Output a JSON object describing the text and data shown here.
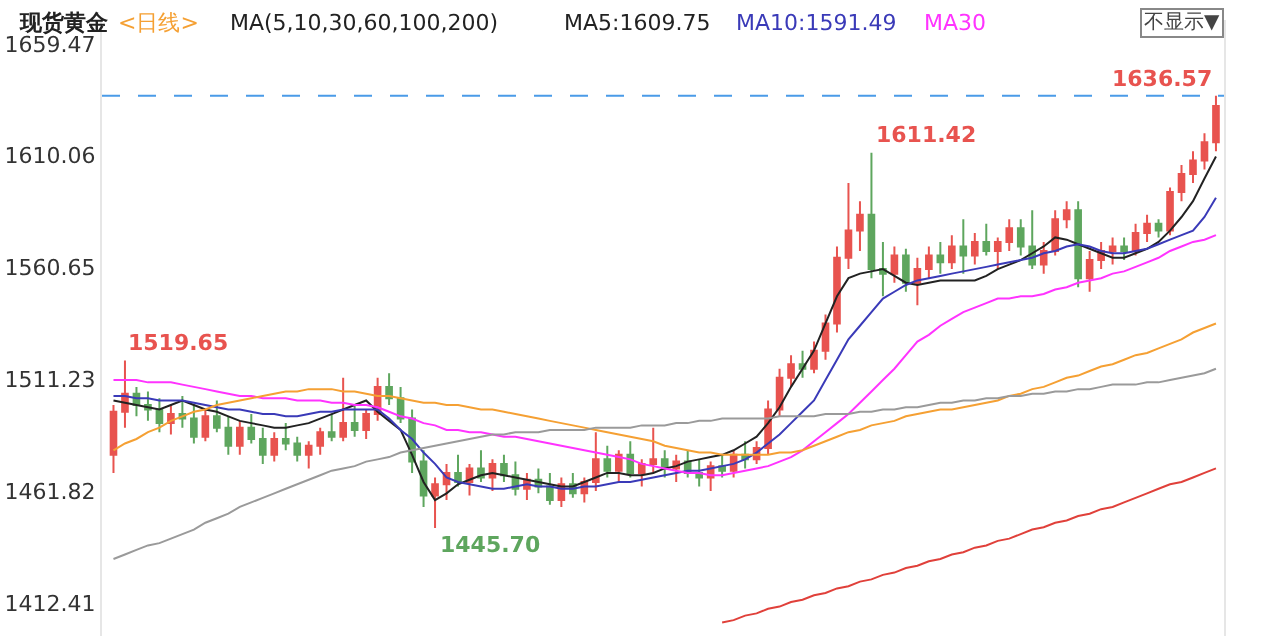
{
  "chart_data": {
    "type": "candlestick",
    "title": "现货黄金",
    "subtitle": "<日线>",
    "annotations": [
      "MA(5,10,30,60,100,200)",
      "不显示▼",
      "1519.65",
      "1445.70",
      "1611.42",
      "1636.57"
    ],
    "categories": [
      null,
      null,
      null,
      null,
      null,
      null,
      null,
      null,
      null,
      null,
      null,
      null,
      null,
      null,
      null,
      null,
      null,
      null,
      null,
      null,
      null,
      null,
      null,
      null,
      null,
      null,
      null,
      null,
      null,
      null,
      null,
      null,
      null,
      null,
      null,
      null,
      null,
      null,
      null,
      null,
      null,
      null,
      null,
      null,
      null,
      null,
      null,
      null,
      null,
      null,
      null,
      null,
      null,
      null,
      null,
      null,
      null,
      null,
      null,
      null,
      null,
      null,
      null,
      null,
      null,
      null,
      null,
      null,
      null,
      null,
      null,
      null,
      null,
      null,
      null,
      null,
      null,
      null,
      null,
      null,
      null,
      null,
      null,
      null,
      null,
      null,
      null,
      null,
      null,
      null,
      null,
      null,
      null,
      null,
      null,
      null,
      null
    ],
    "ohlc": [
      [
        1478,
        1500,
        1470,
        1497
      ],
      [
        1497,
        1519.65,
        1490,
        1505
      ],
      [
        1505,
        1508,
        1495,
        1500
      ],
      [
        1500,
        1506,
        1493,
        1498
      ],
      [
        1498,
        1503,
        1488,
        1492
      ],
      [
        1492,
        1500,
        1487,
        1496
      ],
      [
        1496,
        1504,
        1490,
        1494
      ],
      [
        1494,
        1500,
        1483,
        1486
      ],
      [
        1486,
        1498,
        1484,
        1495
      ],
      [
        1495,
        1502,
        1488,
        1490
      ],
      [
        1490,
        1495,
        1478,
        1482
      ],
      [
        1482,
        1493,
        1478,
        1490
      ],
      [
        1490,
        1496,
        1483,
        1485
      ],
      [
        1485,
        1490,
        1474,
        1478
      ],
      [
        1478,
        1488,
        1475,
        1485
      ],
      [
        1485,
        1492,
        1480,
        1483
      ],
      [
        1483,
        1486,
        1475,
        1478
      ],
      [
        1478,
        1484,
        1472,
        1482
      ],
      [
        1482,
        1490,
        1478,
        1488
      ],
      [
        1488,
        1496,
        1484,
        1486
      ],
      [
        1486,
        1512,
        1484,
        1492
      ],
      [
        1492,
        1500,
        1486,
        1489
      ],
      [
        1489,
        1498,
        1485,
        1496
      ],
      [
        1496,
        1512,
        1493,
        1508
      ],
      [
        1508,
        1514,
        1500,
        1503
      ],
      [
        1503,
        1508,
        1492,
        1494
      ],
      [
        1494,
        1498,
        1470,
        1475
      ],
      [
        1475,
        1480,
        1455,
        1460
      ],
      [
        1460,
        1468,
        1445.7,
        1465
      ],
      [
        1465,
        1474,
        1458,
        1470
      ],
      [
        1470,
        1478,
        1464,
        1466
      ],
      [
        1466,
        1474,
        1460,
        1472
      ],
      [
        1472,
        1480,
        1466,
        1468
      ],
      [
        1468,
        1476,
        1462,
        1474
      ],
      [
        1474,
        1478,
        1466,
        1469
      ],
      [
        1469,
        1475,
        1460,
        1463
      ],
      [
        1463,
        1470,
        1458,
        1467
      ],
      [
        1467,
        1472,
        1461,
        1464
      ],
      [
        1464,
        1470,
        1456,
        1458
      ],
      [
        1458,
        1468,
        1455,
        1465
      ],
      [
        1465,
        1470,
        1459,
        1461
      ],
      [
        1461,
        1468,
        1457,
        1466
      ],
      [
        1466,
        1488,
        1462,
        1476
      ],
      [
        1476,
        1482,
        1468,
        1471
      ],
      [
        1471,
        1480,
        1466,
        1478
      ],
      [
        1478,
        1484,
        1468,
        1470
      ],
      [
        1470,
        1476,
        1464,
        1474
      ],
      [
        1474,
        1490,
        1470,
        1476
      ],
      [
        1476,
        1480,
        1468,
        1472
      ],
      [
        1472,
        1478,
        1466,
        1475
      ],
      [
        1475,
        1480,
        1468,
        1470
      ],
      [
        1470,
        1476,
        1464,
        1468
      ],
      [
        1468,
        1475,
        1462,
        1473
      ],
      [
        1473,
        1478,
        1468,
        1471
      ],
      [
        1471,
        1480,
        1468,
        1478
      ],
      [
        1478,
        1484,
        1472,
        1476
      ],
      [
        1476,
        1484,
        1474,
        1481
      ],
      [
        1481,
        1502,
        1478,
        1498
      ],
      [
        1498,
        1516,
        1495,
        1512
      ],
      [
        1512,
        1522,
        1508,
        1518
      ],
      [
        1518,
        1524,
        1512,
        1516
      ],
      [
        1516,
        1528,
        1514,
        1524
      ],
      [
        1524,
        1540,
        1520,
        1536
      ],
      [
        1536,
        1570,
        1532,
        1565
      ],
      [
        1565,
        1598,
        1560,
        1577
      ],
      [
        1577,
        1590,
        1568,
        1584
      ],
      [
        1584,
        1611.42,
        1556,
        1560
      ],
      [
        1560,
        1572,
        1548,
        1558
      ],
      [
        1558,
        1570,
        1554,
        1566
      ],
      [
        1566,
        1569,
        1550,
        1554
      ],
      [
        1554,
        1565,
        1544,
        1560
      ],
      [
        1560,
        1570,
        1556,
        1566
      ],
      [
        1566,
        1572,
        1558,
        1563
      ],
      [
        1563,
        1575,
        1560,
        1570
      ],
      [
        1570,
        1582,
        1558,
        1566
      ],
      [
        1566,
        1576,
        1562,
        1572
      ],
      [
        1572,
        1580,
        1566,
        1568
      ],
      [
        1568,
        1574,
        1560,
        1572
      ],
      [
        1572,
        1582,
        1568,
        1578
      ],
      [
        1578,
        1582,
        1566,
        1570
      ],
      [
        1570,
        1586,
        1560,
        1562
      ],
      [
        1562,
        1572,
        1558,
        1568
      ],
      [
        1568,
        1586,
        1566,
        1582
      ],
      [
        1582,
        1590,
        1578,
        1586
      ],
      [
        1586,
        1590,
        1552,
        1556
      ],
      [
        1556,
        1568,
        1550,
        1564
      ],
      [
        1564,
        1572,
        1560,
        1568
      ],
      [
        1568,
        1574,
        1562,
        1570
      ],
      [
        1570,
        1574,
        1564,
        1568
      ],
      [
        1568,
        1580,
        1566,
        1576
      ],
      [
        1576,
        1584,
        1572,
        1580
      ],
      [
        1580,
        1582,
        1574,
        1577
      ],
      [
        1577,
        1596,
        1575,
        1594
      ],
      [
        1594,
        1606,
        1590,
        1602
      ],
      [
        1602,
        1612,
        1598,
        1608
      ],
      [
        1608,
        1620,
        1604,
        1616
      ],
      [
        1616,
        1636.57,
        1612,
        1632
      ]
    ],
    "colors": [
      "#e8534f",
      "#e8534f",
      "#5ea65e",
      "#5ea65e",
      "#5ea65e",
      "#e8534f",
      "#5ea65e",
      "#5ea65e",
      "#e8534f",
      "#5ea65e",
      "#5ea65e",
      "#e8534f",
      "#5ea65e",
      "#5ea65e",
      "#e8534f",
      "#5ea65e",
      "#5ea65e",
      "#e8534f",
      "#e8534f",
      "#5ea65e",
      "#e8534f",
      "#5ea65e",
      "#e8534f",
      "#e8534f",
      "#5ea65e",
      "#5ea65e",
      "#5ea65e",
      "#5ea65e",
      "#e8534f",
      "#e8534f",
      "#5ea65e",
      "#e8534f",
      "#5ea65e",
      "#e8534f",
      "#5ea65e",
      "#5ea65e",
      "#e8534f",
      "#5ea65e",
      "#5ea65e",
      "#e8534f",
      "#5ea65e",
      "#e8534f",
      "#e8534f",
      "#5ea65e",
      "#e8534f",
      "#5ea65e",
      "#e8534f",
      "#e8534f",
      "#5ea65e",
      "#e8534f",
      "#5ea65e",
      "#5ea65e",
      "#e8534f",
      "#5ea65e",
      "#e8534f",
      "#5ea65e",
      "#e8534f",
      "#e8534f",
      "#e8534f",
      "#e8534f",
      "#5ea65e",
      "#e8534f",
      "#e8534f",
      "#e8534f",
      "#e8534f",
      "#e8534f",
      "#5ea65e",
      "#5ea65e",
      "#e8534f",
      "#5ea65e",
      "#e8534f",
      "#e8534f",
      "#5ea65e",
      "#e8534f",
      "#5ea65e",
      "#e8534f",
      "#5ea65e",
      "#e8534f",
      "#e8534f",
      "#5ea65e",
      "#5ea65e",
      "#e8534f",
      "#e8534f",
      "#e8534f",
      "#5ea65e",
      "#e8534f",
      "#e8534f",
      "#e8534f",
      "#5ea65e",
      "#e8534f",
      "#e8534f",
      "#5ea65e",
      "#e8534f",
      "#e8534f",
      "#e8534f",
      "#e8534f",
      "#e8534f"
    ],
    "series": [
      {
        "name": "MA5:1609.75",
        "type": "line",
        "color": "#222222",
        "values": [
          1502,
          1501,
          1500,
          1499,
          1498,
          1500,
          1502,
          1500,
          1498,
          1497,
          1495,
          1493,
          1492,
          1491,
          1490,
          1490,
          1491,
          1492,
          1494,
          1496,
          1498,
          1500,
          1502,
          1497,
          1493,
          1489,
          1478,
          1466,
          1458,
          1461,
          1465,
          1467,
          1469,
          1470,
          1469,
          1468,
          1467,
          1466,
          1465,
          1464,
          1464,
          1466,
          1468,
          1470,
          1470,
          1469,
          1469,
          1470,
          1472,
          1473,
          1475,
          1476,
          1477,
          1478,
          1480,
          1483,
          1486,
          1492,
          1499,
          1508,
          1516,
          1524,
          1536,
          1548,
          1556,
          1558,
          1559,
          1560,
          1557,
          1554,
          1553,
          1554,
          1555,
          1555,
          1555,
          1555,
          1557,
          1560,
          1562,
          1564,
          1567,
          1570,
          1574,
          1573,
          1571,
          1569,
          1567,
          1565,
          1565,
          1567,
          1569,
          1572,
          1577,
          1583,
          1590,
          1600,
          1609.75
        ]
      },
      {
        "name": "MA10:1591.49",
        "type": "line",
        "color": "#3a3ab8",
        "values": [
          1504,
          1504,
          1503,
          1503,
          1502,
          1502,
          1502,
          1501,
          1500,
          1499,
          1498,
          1498,
          1497,
          1496,
          1496,
          1495,
          1495,
          1496,
          1497,
          1497,
          1498,
          1498,
          1498,
          1498,
          1494,
          1489,
          1485,
          1479,
          1474,
          1468,
          1466,
          1465,
          1464,
          1463,
          1463,
          1464,
          1465,
          1464,
          1464,
          1463,
          1463,
          1464,
          1464,
          1465,
          1466,
          1466,
          1467,
          1468,
          1469,
          1470,
          1471,
          1471,
          1472,
          1473,
          1474,
          1476,
          1479,
          1483,
          1487,
          1492,
          1497,
          1502,
          1511,
          1520,
          1529,
          1535,
          1541,
          1547,
          1550,
          1553,
          1555,
          1556,
          1557,
          1558,
          1559,
          1560,
          1561,
          1562,
          1563,
          1564,
          1565,
          1567,
          1568,
          1570,
          1571,
          1570,
          1568,
          1567,
          1567,
          1568,
          1569,
          1571,
          1573,
          1575,
          1577,
          1583,
          1591.49
        ]
      },
      {
        "name": "MA30",
        "type": "line",
        "color": "#ff33ff",
        "values": [
          1511,
          1511,
          1511,
          1510,
          1510,
          1510,
          1509,
          1508,
          1507,
          1506,
          1505,
          1504,
          1504,
          1503,
          1503,
          1503,
          1502,
          1502,
          1502,
          1501,
          1501,
          1500,
          1500,
          1499,
          1497,
          1495,
          1494,
          1492,
          1491,
          1489,
          1489,
          1488,
          1488,
          1487,
          1486,
          1486,
          1485,
          1484,
          1483,
          1482,
          1481,
          1480,
          1479,
          1478,
          1477,
          1476,
          1474,
          1473,
          1472,
          1471,
          1470,
          1470,
          1469,
          1469,
          1470,
          1471,
          1472,
          1473,
          1475,
          1477,
          1480,
          1484,
          1488,
          1492,
          1496,
          1501,
          1506,
          1511,
          1516,
          1522,
          1528,
          1531,
          1535,
          1538,
          1541,
          1543,
          1545,
          1547,
          1547,
          1548,
          1548,
          1549,
          1551,
          1552,
          1554,
          1555,
          1556,
          1558,
          1559,
          1561,
          1563,
          1565,
          1568,
          1570,
          1572,
          1573,
          1575
        ]
      },
      {
        "type": "line",
        "color": "#f5a033",
        "values": [
          1480,
          1483,
          1485,
          1488,
          1490,
          1493,
          1495,
          1497,
          1498,
          1500,
          1501,
          1502,
          1503,
          1504,
          1505,
          1506,
          1506,
          1507,
          1507,
          1507,
          1506,
          1506,
          1505,
          1504,
          1504,
          1503,
          1502,
          1501,
          1501,
          1500,
          1500,
          1499,
          1498,
          1498,
          1497,
          1496,
          1495,
          1494,
          1493,
          1492,
          1491,
          1490,
          1489,
          1488,
          1487,
          1486,
          1485,
          1484,
          1482,
          1481,
          1480,
          1479,
          1479,
          1478,
          1478,
          1478,
          1478,
          1478,
          1479,
          1479,
          1480,
          1482,
          1484,
          1486,
          1488,
          1489,
          1491,
          1492,
          1493,
          1495,
          1496,
          1497,
          1498,
          1498,
          1499,
          1500,
          1501,
          1502,
          1504,
          1505,
          1507,
          1508,
          1510,
          1512,
          1513,
          1515,
          1517,
          1518,
          1520,
          1522,
          1523,
          1525,
          1527,
          1529,
          1532,
          1534,
          1536
        ]
      },
      {
        "type": "line",
        "color": "#9a9a9a",
        "values": [
          1432,
          1434,
          1436,
          1438,
          1439,
          1441,
          1443,
          1445,
          1448,
          1450,
          1452,
          1455,
          1457,
          1459,
          1461,
          1463,
          1465,
          1467,
          1469,
          1471,
          1472,
          1473,
          1475,
          1476,
          1477,
          1479,
          1480,
          1481,
          1482,
          1483,
          1484,
          1485,
          1486,
          1487,
          1487,
          1488,
          1488,
          1488,
          1489,
          1489,
          1489,
          1489,
          1490,
          1490,
          1490,
          1490,
          1491,
          1491,
          1491,
          1492,
          1492,
          1493,
          1493,
          1494,
          1494,
          1494,
          1494,
          1494,
          1495,
          1495,
          1495,
          1495,
          1496,
          1496,
          1496,
          1497,
          1497,
          1498,
          1498,
          1499,
          1499,
          1500,
          1501,
          1501,
          1502,
          1502,
          1503,
          1503,
          1504,
          1504,
          1505,
          1505,
          1506,
          1506,
          1507,
          1507,
          1508,
          1509,
          1509,
          1509,
          1510,
          1510,
          1511,
          1512,
          1513,
          1514,
          1516
        ]
      },
      {
        "type": "line",
        "color": "#e0403a",
        "values": [
          null,
          null,
          null,
          null,
          null,
          null,
          null,
          null,
          null,
          null,
          null,
          null,
          null,
          null,
          null,
          null,
          null,
          null,
          null,
          null,
          null,
          null,
          null,
          null,
          null,
          null,
          null,
          null,
          null,
          null,
          null,
          null,
          null,
          null,
          null,
          null,
          null,
          null,
          null,
          null,
          null,
          null,
          null,
          null,
          null,
          null,
          null,
          null,
          null,
          null,
          null,
          null,
          null,
          1404,
          1405,
          1407,
          1408,
          1410,
          1411,
          1413,
          1414,
          1416,
          1417,
          1419,
          1420,
          1422,
          1423,
          1425,
          1426,
          1428,
          1429,
          1431,
          1432,
          1434,
          1435,
          1437,
          1438,
          1440,
          1441,
          1443,
          1445,
          1446,
          1448,
          1449,
          1451,
          1452,
          1454,
          1455,
          1457,
          1459,
          1461,
          1463,
          1465,
          1466,
          1468,
          1470,
          1472
        ]
      }
    ],
    "ylim": [
      1398,
      1670
    ],
    "yticks": [
      1412.41,
      1461.82,
      1511.23,
      1560.65,
      1610.06,
      1659.47
    ],
    "tick_labels": "y",
    "ref_lines": [
      {
        "axis": "y",
        "value": 1636.57,
        "color": "#4a9be8",
        "line_style": "dashed"
      }
    ]
  }
}
